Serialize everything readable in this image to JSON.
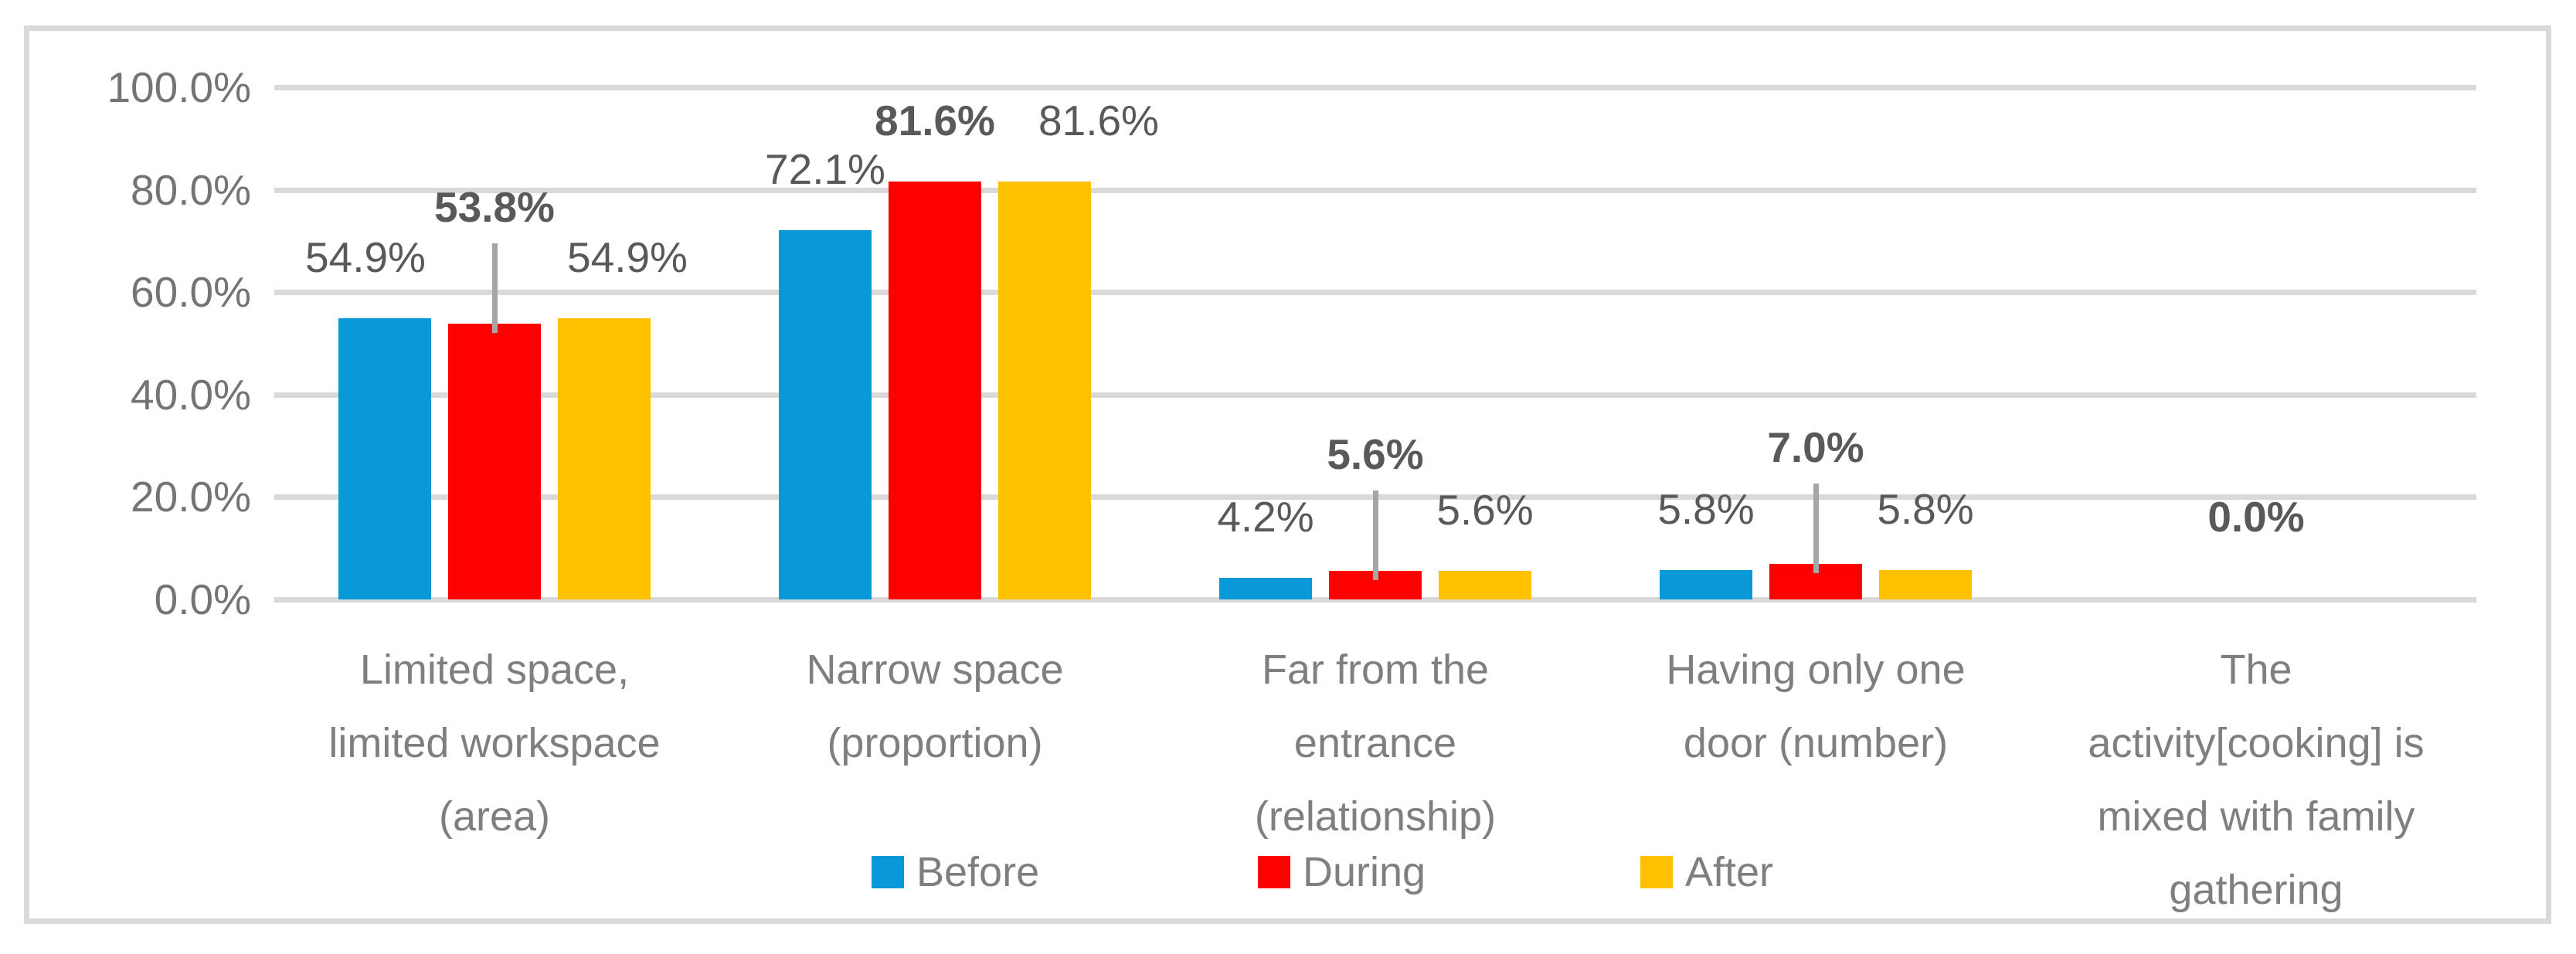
{
  "chart_data": {
    "type": "bar",
    "title": "",
    "xlabel": "",
    "ylabel": "",
    "y_axis": {
      "min": 0,
      "max": 100,
      "grid": true,
      "ticks": [
        {
          "label": "100.0%",
          "value": 100
        },
        {
          "label": "80.0%",
          "value": 80
        },
        {
          "label": "60.0%",
          "value": 60
        },
        {
          "label": "40.0%",
          "value": 40
        },
        {
          "label": "20.0%",
          "value": 20
        },
        {
          "label": "0.0%",
          "value": 0
        }
      ]
    },
    "series": [
      {
        "name": "Before",
        "color": "#0A99D8"
      },
      {
        "name": "During",
        "color": "#FF0000"
      },
      {
        "name": "After",
        "color": "#FFC000"
      }
    ],
    "categories": [
      {
        "label_lines": [
          "Limited space,",
          "limited workspace",
          "(area)"
        ],
        "values": [
          54.9,
          53.8,
          54.9
        ],
        "labels": [
          {
            "series": 0,
            "text": "54.9%",
            "bold": false,
            "dx": -25
          },
          {
            "series": 1,
            "text": "53.8%",
            "bold": true,
            "raised": true,
            "leader": true
          },
          {
            "series": 2,
            "text": "54.9%",
            "bold": false,
            "dx": 30
          }
        ]
      },
      {
        "label_lines": [
          "Narrow space",
          "(proportion)"
        ],
        "values": [
          72.1,
          81.6,
          81.6
        ],
        "labels": [
          {
            "series": 0,
            "text": "72.1%",
            "bold": false
          },
          {
            "series": 1,
            "text": "81.6%",
            "bold": true
          },
          {
            "series": 2,
            "text": "81.6%",
            "bold": false,
            "dx": 70
          }
        ]
      },
      {
        "label_lines": [
          "Far from the",
          "entrance",
          "(relationship)"
        ],
        "values": [
          4.2,
          5.6,
          5.6
        ],
        "labels": [
          {
            "series": 0,
            "text": "4.2%",
            "bold": false
          },
          {
            "series": 1,
            "text": "5.6%",
            "bold": true,
            "raised": true,
            "leader": true
          },
          {
            "series": 2,
            "text": "5.6%",
            "bold": false
          }
        ]
      },
      {
        "label_lines": [
          "Having only one",
          "door (number)"
        ],
        "values": [
          5.8,
          7.0,
          5.8
        ],
        "labels": [
          {
            "series": 0,
            "text": "5.8%",
            "bold": false
          },
          {
            "series": 1,
            "text": "7.0%",
            "bold": true,
            "raised": true,
            "leader": true
          },
          {
            "series": 2,
            "text": "5.8%",
            "bold": false
          }
        ]
      },
      {
        "label_lines": [
          "The",
          "activity[cooking] is",
          "mixed with family",
          "gathering"
        ],
        "values": [
          0,
          0,
          0
        ],
        "labels": [
          {
            "anchor": "category",
            "text": "0.0%",
            "bold": true
          }
        ]
      }
    ],
    "legend": {
      "position": "bottom",
      "items": [
        "Before",
        "During",
        "After"
      ]
    },
    "colors": {
      "background": "#FFFFFF",
      "border": "#D9D9D9",
      "gridline": "#D9D9D9",
      "leader_line": "#A6A6A6",
      "data_label": "#595959",
      "axis_tick_label": "#747474",
      "category_label": "#7F7F7F",
      "legend_label": "#7F7F7F"
    }
  }
}
